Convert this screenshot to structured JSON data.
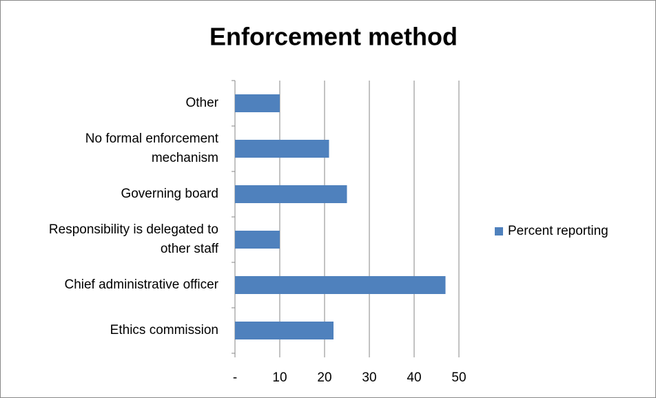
{
  "chart_data": {
    "type": "bar",
    "orientation": "horizontal",
    "title": "Enforcement method",
    "categories": [
      "Ethics commission",
      "Chief administrative officer",
      "Responsibility is delegated to other staff",
      "Governing board",
      "No formal enforcement mechanism",
      "Other"
    ],
    "series": [
      {
        "name": "Percent reporting",
        "color": "#4f81bd",
        "values": [
          22,
          47,
          10,
          25,
          21,
          10
        ]
      }
    ],
    "xlim": [
      0,
      50
    ],
    "xticks": [
      {
        "value": 0,
        "label": "-"
      },
      10,
      20,
      30,
      40,
      50
    ],
    "grid": true,
    "legend": "right"
  }
}
